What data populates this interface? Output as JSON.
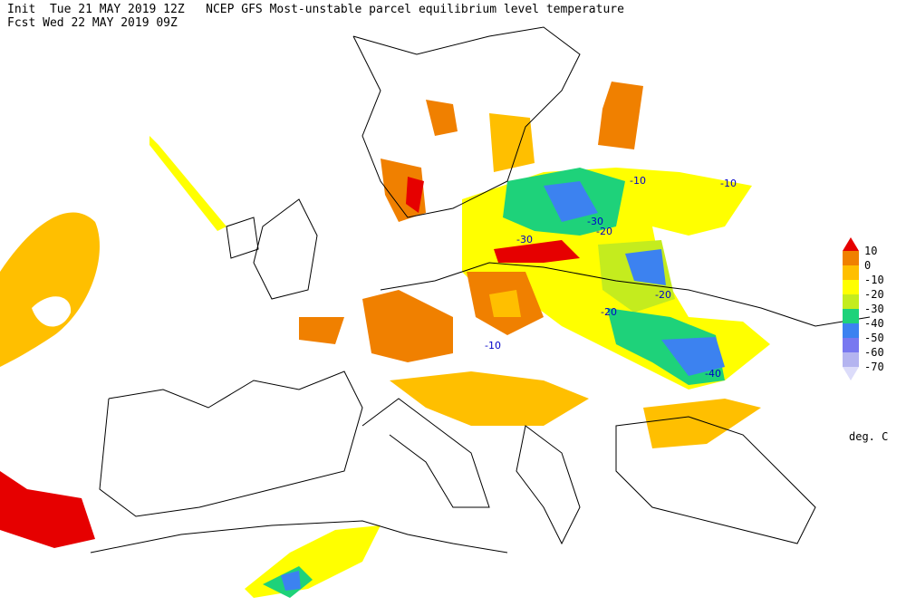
{
  "header": {
    "line1": "Init  Tue 21 MAY 2019 12Z   NCEP GFS Most-unstable parcel equilibrium level temperature",
    "line2": "Fcst Wed 22 MAY 2019 09Z"
  },
  "legend": {
    "labels": [
      "10",
      "0",
      "-10",
      "-20",
      "-30",
      "-40",
      "-50",
      "-60",
      "-70"
    ],
    "colors": [
      "#e60000",
      "#f08000",
      "#ffbf00",
      "#ffff00",
      "#c4ec1e",
      "#1ed27a",
      "#3c82f0",
      "#7878f0",
      "#b4b4f0",
      "#dcdcfa"
    ],
    "unit": "deg. C"
  },
  "map": {
    "contour_labels": [
      "-10",
      "-10",
      "-30",
      "-20",
      "-30",
      "-20",
      "-20",
      "-10",
      "-40"
    ]
  }
}
